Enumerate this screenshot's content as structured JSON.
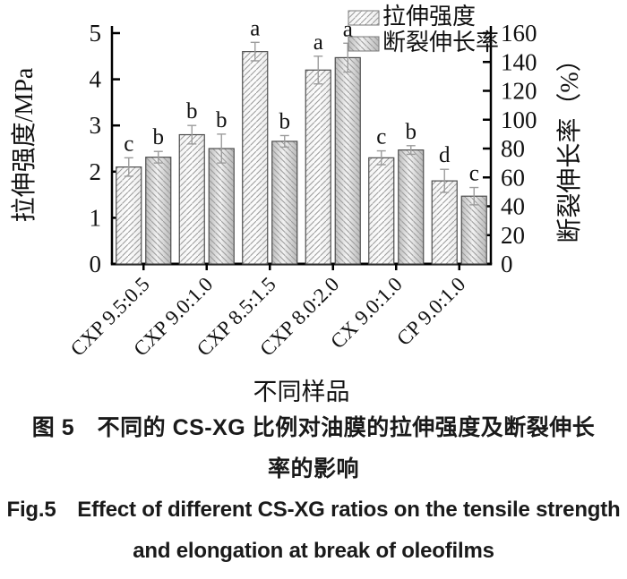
{
  "figure": {
    "caption_zh_line1": "图 5　不同的 CS-XG 比例对油膜的拉伸强度及断裂伸长",
    "caption_zh_line2": "率的影响",
    "caption_en_line1": "Fig.5　Effect of different CS-XG ratios on the tensile strength",
    "caption_en_line2": "and elongation at break of oleofilms"
  },
  "chart_data": {
    "type": "bar",
    "title": "",
    "categories": [
      "CXP 9.5:0.5",
      "CXP 9.0:1.0",
      "CXP 8.5:1.5",
      "CXP 8.0:2.0",
      "CX 9.0:1.0",
      "CP 9.0:1.0"
    ],
    "xlabel": "不同样品",
    "axes": {
      "left": {
        "label": "拉伸强度/MPa",
        "lim": [
          0,
          5
        ],
        "ticks": [
          0,
          1,
          2,
          3,
          4,
          5
        ]
      },
      "right": {
        "label": "断裂伸长率（%）",
        "lim": [
          0,
          160
        ],
        "ticks": [
          0,
          20,
          40,
          60,
          80,
          100,
          120,
          140,
          160
        ]
      }
    },
    "series": [
      {
        "name": "拉伸强度",
        "axis": "left",
        "hatch": "forward",
        "values": [
          2.1,
          2.8,
          4.6,
          4.2,
          2.3,
          1.8
        ],
        "errors": [
          0.2,
          0.2,
          0.2,
          0.3,
          0.15,
          0.25
        ],
        "letters": [
          "c",
          "b",
          "a",
          "a",
          "c",
          "d"
        ]
      },
      {
        "name": "断裂伸长率",
        "axis": "right",
        "hatch": "backward",
        "values": [
          74,
          80,
          85,
          143,
          79,
          47
        ],
        "errors": [
          4,
          10,
          4,
          10,
          3,
          6
        ],
        "letters": [
          "b",
          "b",
          "b",
          "a",
          "b",
          "c"
        ]
      }
    ],
    "legend_position": "top-right",
    "grid": false,
    "colors": {
      "hatch": "#9a9a9a",
      "bar_outline": "#4d4d4d",
      "error_bar": "#9c9c9c",
      "axis": "#000000",
      "text": "#111111"
    }
  }
}
